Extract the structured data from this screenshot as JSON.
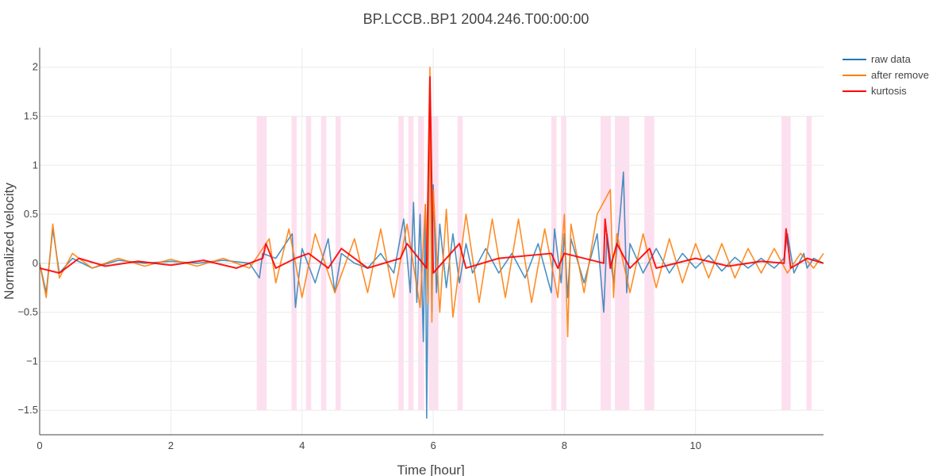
{
  "chart_data": {
    "type": "line",
    "title": "BP.LCCB..BP1 2004.246.T00:00:00",
    "xlabel": "Time [hour]",
    "ylabel": "Normalized velocity",
    "xlim": [
      0,
      11.95
    ],
    "ylim": [
      -1.75,
      2.2
    ],
    "x_ticks": [
      0,
      2,
      4,
      6,
      8,
      10
    ],
    "y_ticks": [
      -1.5,
      -1,
      -0.5,
      0,
      0.5,
      1,
      1.5,
      2
    ],
    "y_tick_labels": [
      "−1.5",
      "−1",
      "−0.5",
      "0",
      "0.5",
      "1",
      "1.5",
      "2"
    ],
    "grid": true,
    "legend_position": "top-right",
    "shaded_intervals": {
      "color": "#fde0ef",
      "ymin": -1.5,
      "ymax": 1.5,
      "ranges": [
        [
          3.31,
          3.46
        ],
        [
          3.84,
          3.92
        ],
        [
          4.06,
          4.14
        ],
        [
          4.29,
          4.37
        ],
        [
          4.51,
          4.59
        ],
        [
          5.47,
          5.55
        ],
        [
          5.62,
          5.7
        ],
        [
          5.77,
          5.86
        ],
        [
          5.93,
          6.08
        ],
        [
          6.37,
          6.45
        ],
        [
          7.8,
          7.88
        ],
        [
          7.95,
          8.03
        ],
        [
          8.55,
          8.71
        ],
        [
          8.77,
          8.99
        ],
        [
          9.22,
          9.37
        ],
        [
          11.31,
          11.45
        ],
        [
          11.69,
          11.77
        ]
      ]
    },
    "series": [
      {
        "name": "raw data",
        "color": "#1f77b4",
        "x": [
          0,
          0.1,
          0.2,
          0.3,
          0.5,
          0.8,
          1.2,
          1.6,
          2.0,
          2.4,
          2.8,
          3.2,
          3.35,
          3.4,
          3.6,
          3.85,
          3.9,
          4.0,
          4.2,
          4.4,
          4.5,
          4.6,
          4.8,
          5.0,
          5.2,
          5.4,
          5.55,
          5.65,
          5.7,
          5.75,
          5.8,
          5.85,
          5.88,
          5.9,
          5.93,
          5.95,
          5.98,
          6.0,
          6.05,
          6.1,
          6.2,
          6.3,
          6.4,
          6.5,
          6.6,
          6.8,
          7.0,
          7.2,
          7.4,
          7.6,
          7.8,
          7.85,
          7.95,
          8.0,
          8.05,
          8.1,
          8.3,
          8.5,
          8.6,
          8.65,
          8.75,
          8.85,
          8.9,
          8.95,
          9.0,
          9.2,
          9.4,
          9.6,
          9.8,
          10.0,
          10.2,
          10.4,
          10.6,
          10.8,
          11.0,
          11.2,
          11.35,
          11.4,
          11.5,
          11.65,
          11.7,
          11.8,
          11.95
        ],
        "y": [
          0.0,
          -0.3,
          0.35,
          -0.1,
          0.05,
          -0.05,
          0.03,
          0.0,
          0.02,
          0.0,
          0.03,
          0.0,
          -0.15,
          0.1,
          0.05,
          0.3,
          -0.45,
          0.15,
          -0.2,
          0.25,
          -0.3,
          0.1,
          0.0,
          -0.05,
          0.1,
          -0.1,
          0.45,
          -0.3,
          0.62,
          -0.4,
          0.5,
          -0.8,
          0.6,
          -1.58,
          0.3,
          1.85,
          -0.5,
          0.8,
          -0.3,
          0.4,
          -0.25,
          0.3,
          -0.2,
          0.2,
          -0.1,
          0.15,
          -0.1,
          0.1,
          -0.15,
          0.2,
          -0.3,
          0.35,
          -0.2,
          0.3,
          -0.35,
          0.25,
          -0.2,
          0.3,
          -0.5,
          0.3,
          -0.2,
          0.5,
          0.93,
          -0.3,
          0.2,
          -0.1,
          0.15,
          -0.1,
          0.1,
          -0.05,
          0.08,
          -0.08,
          0.06,
          -0.05,
          0.05,
          -0.05,
          0.05,
          0.3,
          -0.1,
          0.1,
          -0.05,
          0.05,
          0.0
        ]
      },
      {
        "name": "after remove",
        "color": "#ff7f0e",
        "x": [
          0,
          0.1,
          0.2,
          0.3,
          0.5,
          0.8,
          1.2,
          1.6,
          2.0,
          2.4,
          2.8,
          3.2,
          3.5,
          3.6,
          3.8,
          4.0,
          4.2,
          4.5,
          4.8,
          5.0,
          5.2,
          5.4,
          5.6,
          5.8,
          5.88,
          5.92,
          5.95,
          5.98,
          6.0,
          6.1,
          6.2,
          6.3,
          6.5,
          6.7,
          6.9,
          7.1,
          7.3,
          7.5,
          7.7,
          7.9,
          8.0,
          8.05,
          8.1,
          8.3,
          8.5,
          8.7,
          8.75,
          8.8,
          9.0,
          9.2,
          9.4,
          9.6,
          9.8,
          10.0,
          10.2,
          10.4,
          10.6,
          10.8,
          11.0,
          11.2,
          11.4,
          11.6,
          11.8,
          11.95
        ],
        "y": [
          0.0,
          -0.35,
          0.4,
          -0.15,
          0.1,
          -0.05,
          0.05,
          -0.03,
          0.04,
          -0.03,
          0.05,
          -0.05,
          0.25,
          -0.2,
          0.35,
          -0.35,
          0.3,
          -0.3,
          0.25,
          -0.3,
          0.35,
          -0.35,
          0.4,
          -0.45,
          0.6,
          -0.4,
          2.0,
          -0.6,
          0.75,
          -0.5,
          0.55,
          -0.55,
          0.5,
          -0.4,
          0.45,
          -0.35,
          0.45,
          -0.4,
          0.35,
          -0.35,
          0.5,
          -0.75,
          0.4,
          -0.3,
          0.5,
          0.75,
          -0.35,
          0.3,
          -0.3,
          0.3,
          -0.25,
          0.25,
          -0.2,
          0.2,
          -0.15,
          0.2,
          -0.15,
          0.15,
          -0.1,
          0.15,
          -0.1,
          0.1,
          -0.05,
          0.1
        ]
      },
      {
        "name": "kurtosis",
        "color": "#ff0000",
        "x": [
          0,
          0.3,
          0.6,
          1.0,
          1.5,
          2.0,
          2.5,
          3.0,
          3.4,
          3.45,
          3.6,
          3.9,
          4.1,
          4.4,
          4.6,
          5.0,
          5.5,
          5.6,
          5.9,
          5.95,
          6.0,
          6.4,
          6.5,
          7.0,
          7.8,
          7.9,
          8.0,
          8.6,
          8.62,
          8.7,
          8.8,
          9.0,
          9.3,
          9.4,
          10.0,
          10.5,
          11.0,
          11.35,
          11.38,
          11.45,
          11.7,
          11.95
        ],
        "y": [
          -0.05,
          -0.1,
          0.05,
          -0.03,
          0.02,
          -0.02,
          0.03,
          -0.05,
          0.05,
          0.2,
          -0.05,
          0.05,
          0.1,
          -0.05,
          0.15,
          -0.05,
          0.05,
          0.2,
          -0.05,
          1.9,
          -0.1,
          0.2,
          -0.05,
          0.05,
          0.1,
          -0.05,
          0.1,
          0.0,
          0.45,
          -0.05,
          0.2,
          -0.05,
          0.15,
          -0.05,
          0.05,
          -0.03,
          0.02,
          0.0,
          0.35,
          -0.05,
          0.05,
          0.0
        ]
      }
    ]
  }
}
